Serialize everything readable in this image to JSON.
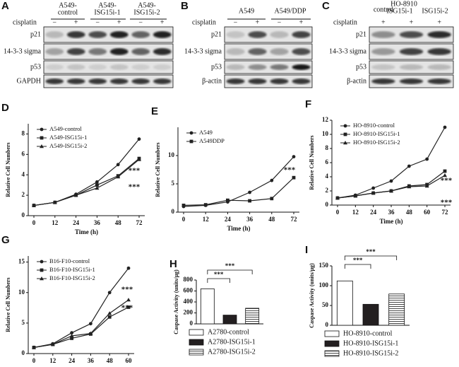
{
  "blots": [
    {
      "label": "A",
      "headers": [
        [
          "A549-",
          "control"
        ],
        [
          "A549-",
          "ISG15i-1"
        ],
        [
          "A549-",
          "ISG15i-2"
        ]
      ],
      "treatment_label": "cisplatin",
      "treatments": [
        "−",
        "+",
        "−",
        "+",
        "−",
        "+"
      ],
      "rows": [
        "p21",
        "14-3-3 sigma",
        "p53",
        "GAPDH"
      ]
    },
    {
      "label": "B",
      "headers": [
        [
          "A549"
        ],
        [
          "A549/DDP"
        ]
      ],
      "treatment_label": "cisplatin",
      "treatments": [
        "−",
        "+",
        "−",
        "+"
      ],
      "rows": [
        "p21",
        "14-3-3 sigma",
        "p53",
        "β-actin"
      ]
    },
    {
      "label": "C",
      "headers": [
        [
          "control"
        ],
        [
          "HO-8910"
        ],
        [
          "ISG15i-1"
        ],
        [
          "ISG15i-2"
        ]
      ],
      "treatment_label": "cisplatin",
      "treatments": [
        "+",
        "+",
        "+"
      ],
      "rows": [
        "p21",
        "14-3-3 sigma",
        "p53",
        "β-actin"
      ]
    }
  ],
  "chart_data": [
    {
      "type": "line",
      "label": "D",
      "xlabel": "Time (h)",
      "ylabel": "Relative Cell Numbers",
      "categories": [
        "0",
        "12",
        "24",
        "36",
        "48",
        "72"
      ],
      "ylim": [
        0,
        9
      ],
      "yticks": [
        0,
        2,
        4,
        6,
        8
      ],
      "series": [
        {
          "name": "A549-control",
          "marker": "circle",
          "color": "#222222",
          "values": [
            1,
            1.3,
            2.1,
            3.3,
            5.0,
            7.5
          ]
        },
        {
          "name": "A549-ISG15i-1",
          "marker": "square",
          "color": "#222222",
          "values": [
            1,
            1.3,
            2.0,
            3.0,
            3.9,
            5.6
          ]
        },
        {
          "name": "A549-ISG15i-2",
          "marker": "triangle",
          "color": "#222222",
          "values": [
            1,
            1.3,
            2.0,
            2.7,
            3.8,
            5.5
          ]
        }
      ],
      "annotations": [
        "***",
        "***"
      ]
    },
    {
      "type": "line",
      "label": "E",
      "xlabel": "Time (h)",
      "ylabel": "Relative Cell Numbers",
      "categories": [
        "0",
        "12",
        "24",
        "36",
        "48",
        "72"
      ],
      "ylim": [
        0,
        15
      ],
      "yticks": [
        0,
        5,
        10
      ],
      "series": [
        {
          "name": "A549",
          "marker": "circle",
          "color": "#222222",
          "values": [
            1,
            1.2,
            1.8,
            3.5,
            5.6,
            9.8
          ]
        },
        {
          "name": "A549DDP",
          "marker": "square",
          "color": "#222222",
          "values": [
            1.2,
            1.3,
            2.1,
            2.0,
            2.4,
            6.1
          ]
        }
      ],
      "annotations": [
        "***"
      ]
    },
    {
      "type": "line",
      "label": "F",
      "xlabel": "Time (h)",
      "ylabel": "Relative Cell Numbers",
      "categories": [
        "0",
        "12",
        "24",
        "36",
        "48",
        "60",
        "72"
      ],
      "ylim": [
        0,
        12
      ],
      "yticks": [
        0,
        2,
        4,
        6,
        8,
        10,
        12
      ],
      "series": [
        {
          "name": "HO-8910-control",
          "marker": "circle",
          "color": "#222222",
          "values": [
            1,
            1.4,
            2.4,
            3.4,
            5.5,
            6.5,
            11.0
          ]
        },
        {
          "name": "HO-8910-ISG15i-1",
          "marker": "square",
          "color": "#222222",
          "values": [
            1,
            1.3,
            1.7,
            2.0,
            2.7,
            2.9,
            4.8
          ]
        },
        {
          "name": "HO-8910-ISG15i-2",
          "marker": "triangle",
          "color": "#222222",
          "values": [
            1,
            1.3,
            1.7,
            2.0,
            2.6,
            2.7,
            4.2
          ]
        }
      ],
      "annotations": [
        "***",
        "***"
      ]
    },
    {
      "type": "line",
      "label": "G",
      "xlabel": "",
      "ylabel": "Relative Cell Numbers",
      "categories": [
        "0",
        "12",
        "24",
        "36",
        "48",
        "60"
      ],
      "ylim": [
        0,
        16
      ],
      "yticks": [
        0,
        5,
        10,
        15
      ],
      "series": [
        {
          "name": "B16-F10-control",
          "marker": "circle",
          "color": "#222222",
          "values": [
            1,
            1.6,
            3.4,
            4.9,
            10.0,
            14.0
          ]
        },
        {
          "name": "B16-F10-ISG15i-1",
          "marker": "square",
          "color": "#222222",
          "values": [
            1,
            1.5,
            2.5,
            3.2,
            6.0,
            7.6
          ]
        },
        {
          "name": "B16-F10-ISG15i-2",
          "marker": "triangle",
          "color": "#222222",
          "values": [
            1,
            1.5,
            2.9,
            3.3,
            6.6,
            8.8
          ]
        }
      ],
      "annotations": [
        "***",
        "***"
      ]
    },
    {
      "type": "bar",
      "label": "H",
      "ylabel": "Caspase Activity (units/μg)",
      "categories": [
        "A2780-control",
        "A2780-ISG15i-1",
        "A2780-ISG15i-2"
      ],
      "values": [
        640,
        160,
        285
      ],
      "colors": [
        "#ffffff",
        "#231f20",
        "stripe"
      ],
      "ylim": [
        0,
        800
      ],
      "yticks": [
        0,
        200,
        400,
        600,
        800
      ],
      "annotations": [
        "***",
        "***"
      ]
    },
    {
      "type": "bar",
      "label": "I",
      "ylabel": "Caspase Activity (units/μg)",
      "categories": [
        "HO-8910-control",
        "HO-8910-ISG15i-1",
        "HO-8910-ISG15i-2"
      ],
      "values": [
        112,
        53,
        79
      ],
      "colors": [
        "#ffffff",
        "#231f20",
        "stripe"
      ],
      "ylim": [
        0,
        150
      ],
      "yticks": [
        0,
        50,
        100,
        150
      ],
      "annotations": [
        "***",
        "***"
      ]
    }
  ]
}
